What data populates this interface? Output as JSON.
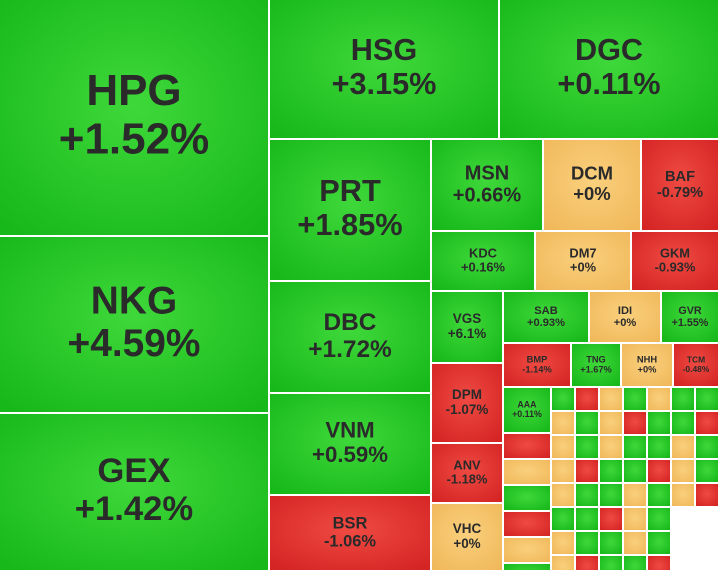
{
  "chart_data": {
    "type": "treemap",
    "categories": [
      "HPG",
      "NKG",
      "GEX",
      "HSG",
      "DGC",
      "PRT",
      "DBC",
      "VNM",
      "BSR",
      "MSN",
      "DCM",
      "BAF",
      "KDC",
      "DM7",
      "GKM",
      "VGS",
      "SAB",
      "IDI",
      "GVR",
      "DPM",
      "ANV",
      "VHC",
      "BMP",
      "TNG",
      "NHH",
      "TCM",
      "AAA"
    ],
    "values": [
      1.52,
      4.59,
      1.42,
      3.15,
      0.11,
      1.85,
      1.72,
      0.59,
      -1.06,
      0.66,
      0,
      -0.79,
      0.16,
      0,
      -0.93,
      6.1,
      0.93,
      0,
      1.55,
      -1.07,
      -1.18,
      0,
      -1.14,
      1.67,
      0,
      -0.48,
      0.11
    ],
    "value_labels": [
      "+1.52%",
      "+4.59%",
      "+1.42%",
      "+3.15%",
      "+0.11%",
      "+1.85%",
      "+1.72%",
      "+0.59%",
      "-1.06%",
      "+0.66%",
      "+0%",
      "-0.79%",
      "+0.16%",
      "+0%",
      "-0.93%",
      "+6.1%",
      "+0.93%",
      "+0%",
      "+1.55%",
      "-1.07%",
      "-1.18%",
      "+0%",
      "-1.14%",
      "+1.67%",
      "+0%",
      "-0.48%",
      "+0.11%"
    ]
  }
}
